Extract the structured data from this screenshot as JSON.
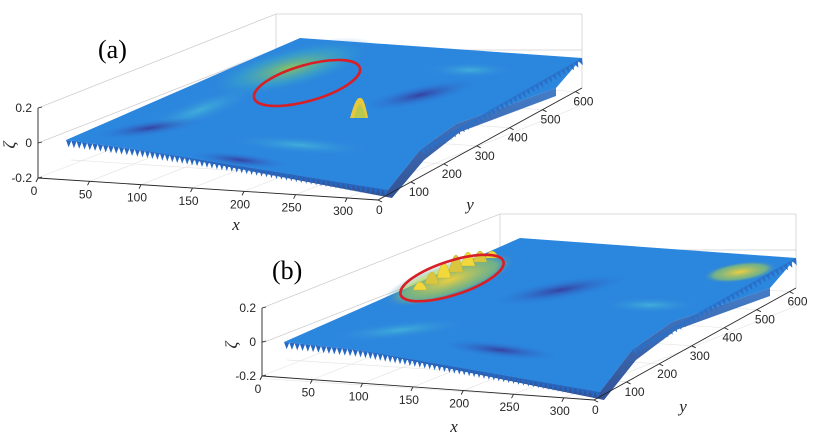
{
  "colors": {
    "surface_low": "#1f3fae",
    "surface_mid": "#2e8be0",
    "surface_base": "#2a7fdc",
    "surface_high": "#7fc46a",
    "peak": "#f5d23a",
    "deep": "#3a2a8c",
    "highlight_contour": "#d81f26"
  },
  "chart_data": [
    {
      "type": "surface",
      "panel_label": "(a)",
      "xlabel": "x",
      "ylabel": "y",
      "zlabel": "ζ",
      "xlim": [
        0,
        330
      ],
      "ylim": [
        0,
        620
      ],
      "zlim": [
        -0.2,
        0.2
      ],
      "x_ticks": [
        "0",
        "50",
        "100",
        "150",
        "200",
        "250",
        "300"
      ],
      "y_ticks": [
        "0",
        "100",
        "200",
        "300",
        "400",
        "500",
        "600"
      ],
      "z_ticks": [
        "0.2",
        "0",
        "-0.2"
      ],
      "features": [
        {
          "kind": "raised region",
          "x": 160,
          "y": 430,
          "amplitude": 0.06
        },
        {
          "kind": "localized peak",
          "x": 240,
          "y": 260,
          "amplitude": 0.13
        }
      ]
    },
    {
      "type": "surface",
      "panel_label": "(b)",
      "xlabel": "x",
      "ylabel": "y",
      "zlabel": "ζ",
      "xlim": [
        0,
        330
      ],
      "ylim": [
        0,
        620
      ],
      "zlim": [
        -0.2,
        0.2
      ],
      "x_ticks": [
        "0",
        "50",
        "100",
        "150",
        "200",
        "250",
        "300"
      ],
      "y_ticks": [
        "0",
        "100",
        "200",
        "300",
        "400",
        "500",
        "600"
      ],
      "z_ticks": [
        "0.2",
        "0",
        "-0.2"
      ],
      "features": [
        {
          "kind": "wave packet",
          "x": 150,
          "y": 480,
          "amplitude": 0.18
        },
        {
          "kind": "raised region",
          "x": 300,
          "y": 560,
          "amplitude": 0.07
        }
      ]
    }
  ]
}
